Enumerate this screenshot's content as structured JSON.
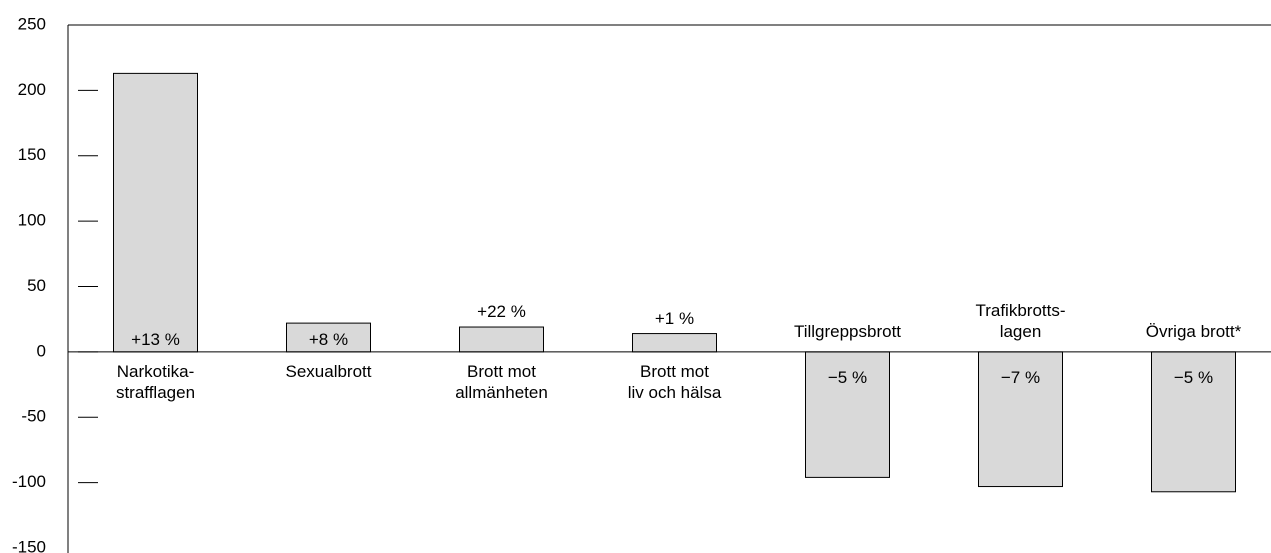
{
  "chart_data": {
    "type": "bar",
    "categories": [
      "Narkotika-\nstrafflagen",
      "Sexualbrott",
      "Brott mot\nallmänheten",
      "Brott mot\nliv och hälsa",
      "Tillgreppsbrott",
      "Trafikbrotts-\nlagen",
      "Övriga brott*"
    ],
    "values": [
      213,
      22,
      19,
      14,
      -96,
      -103,
      -107
    ],
    "annotations": [
      "+13 %",
      "+8 %",
      "+22 %",
      "+1 %",
      "−5 %",
      "−7 %",
      "−5 %"
    ],
    "color": "#d9d9d9",
    "ylim": [
      -150,
      250
    ],
    "yticks": [
      250,
      200,
      150,
      100,
      50,
      0,
      -50,
      -100,
      -150
    ]
  }
}
